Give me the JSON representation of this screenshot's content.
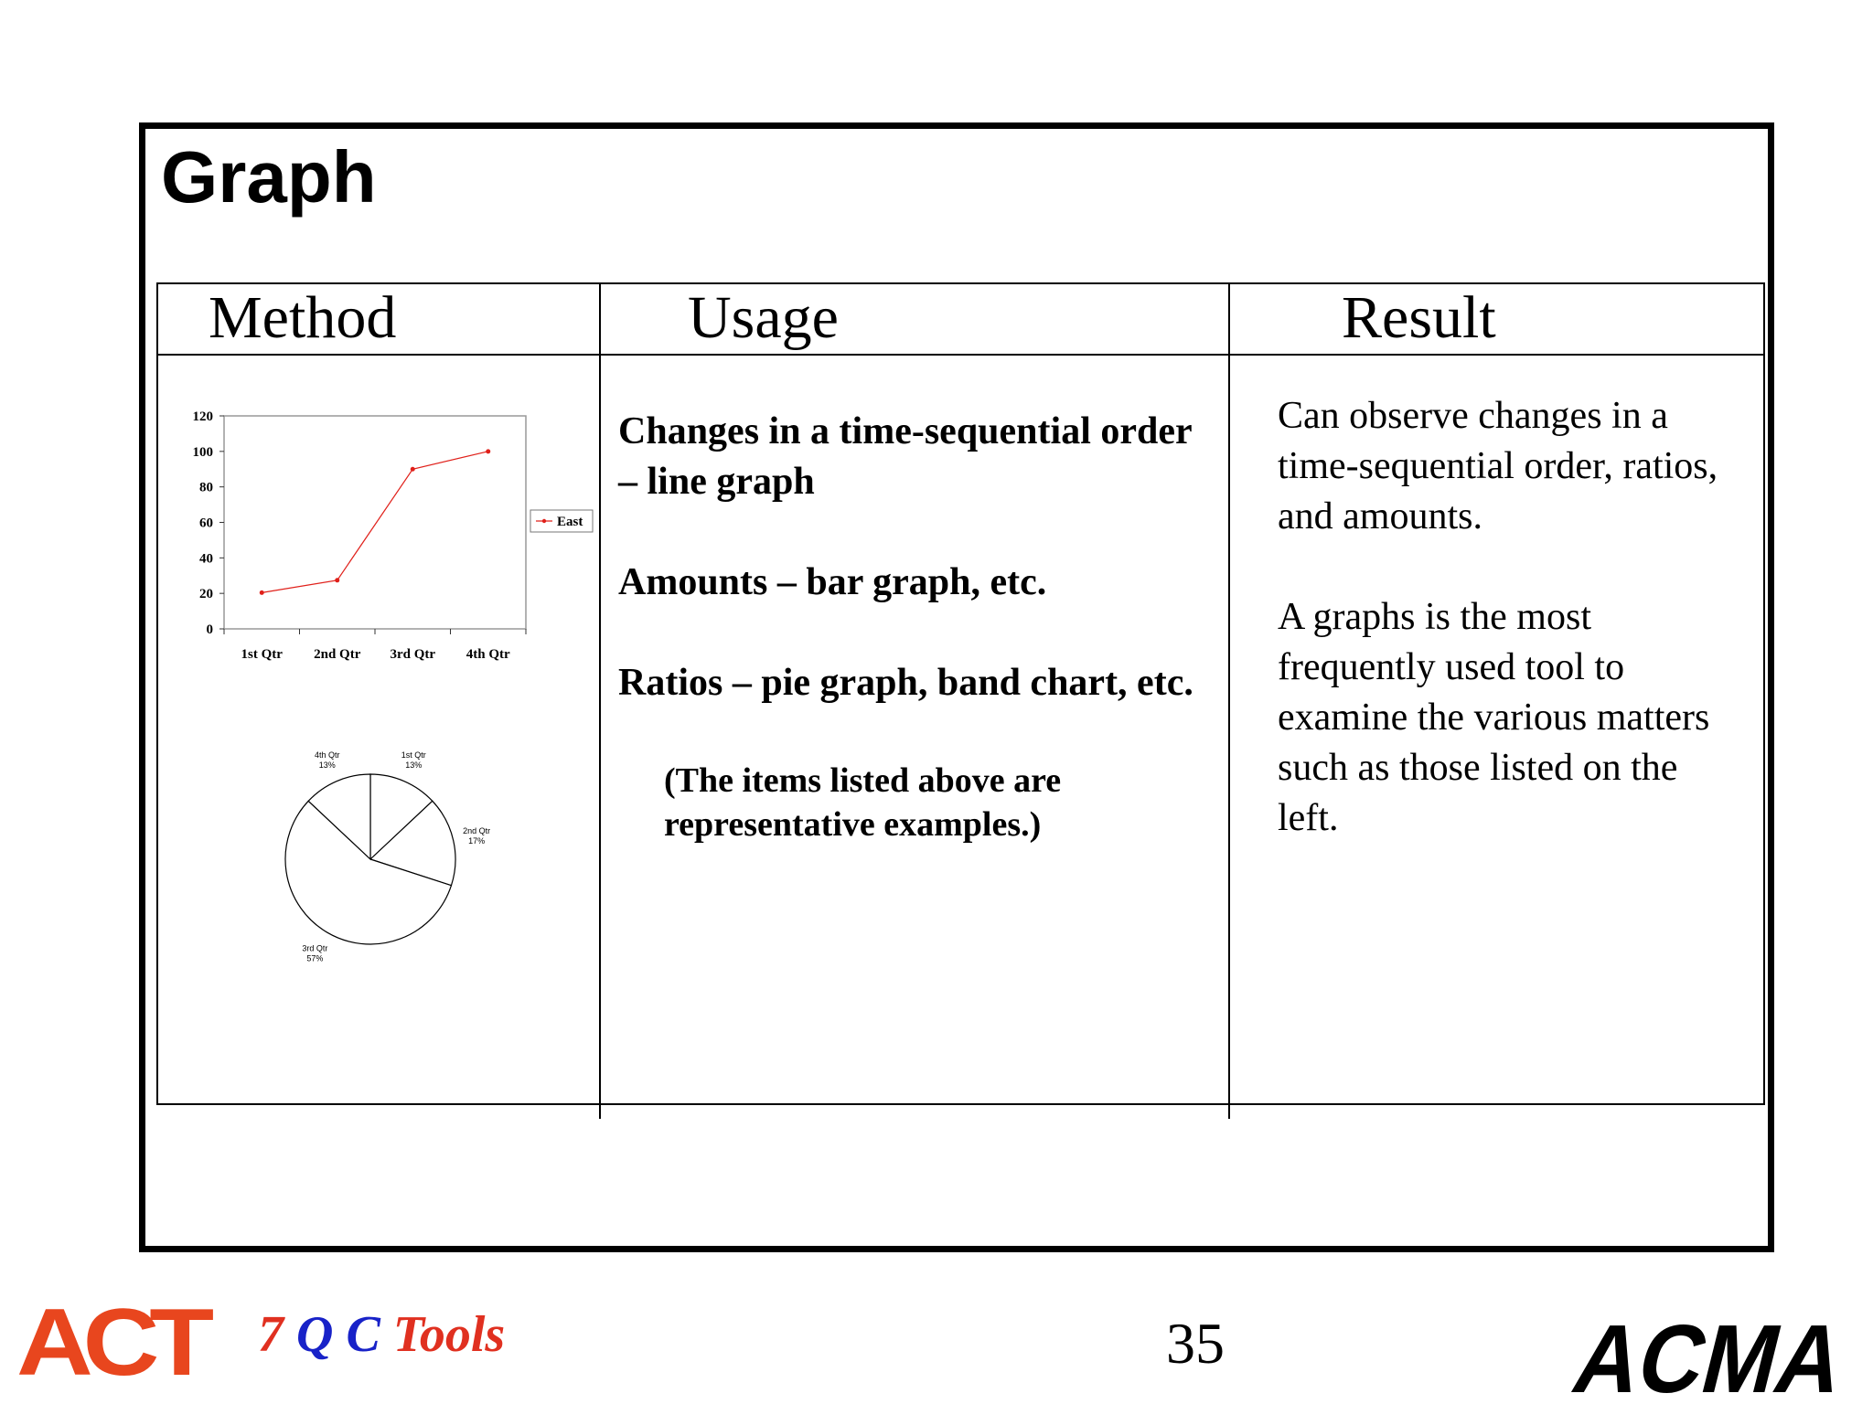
{
  "slide": {
    "title": "Graph",
    "page_number": "35"
  },
  "table": {
    "headers": [
      "Method",
      "Usage",
      "Result"
    ],
    "usage": [
      "Changes in a time-sequential order – line graph",
      "Amounts – bar graph, etc.",
      "Ratios – pie graph, band chart, etc.",
      "(The items listed above are representative examples.)"
    ],
    "result": [
      "Can observe changes in a time-sequential order, ratios, and amounts.",
      "A graphs is the most frequently used tool to examine the various matters such as those listed on the left."
    ]
  },
  "chart_data": [
    {
      "type": "line",
      "categories": [
        "1st Qtr",
        "2nd Qtr",
        "3rd Qtr",
        "4th Qtr"
      ],
      "series": [
        {
          "name": "East",
          "values": [
            20.4,
            27.4,
            90,
            100
          ],
          "color": "#e0201a"
        }
      ],
      "yticks": [
        0,
        20,
        40,
        60,
        80,
        100,
        120
      ],
      "ylim": [
        0,
        120
      ],
      "legend": "right"
    },
    {
      "type": "pie",
      "slices": [
        {
          "label": "1st Qtr",
          "pct_label": "13%",
          "value": 13
        },
        {
          "label": "2nd Qtr",
          "pct_label": "17%",
          "value": 17
        },
        {
          "label": "3rd Qtr",
          "pct_label": "57%",
          "value": 57
        },
        {
          "label": "4th Qtr",
          "pct_label": "13%",
          "value": 13
        }
      ]
    }
  ],
  "footer": {
    "left_logo": "ACT",
    "tools_parts": [
      {
        "text": "7 ",
        "color": "#e03020"
      },
      {
        "text": "Q C ",
        "color": "#1822c8"
      },
      {
        "text": "Tools",
        "color": "#e03020"
      }
    ],
    "right_logo": "ACMA"
  }
}
